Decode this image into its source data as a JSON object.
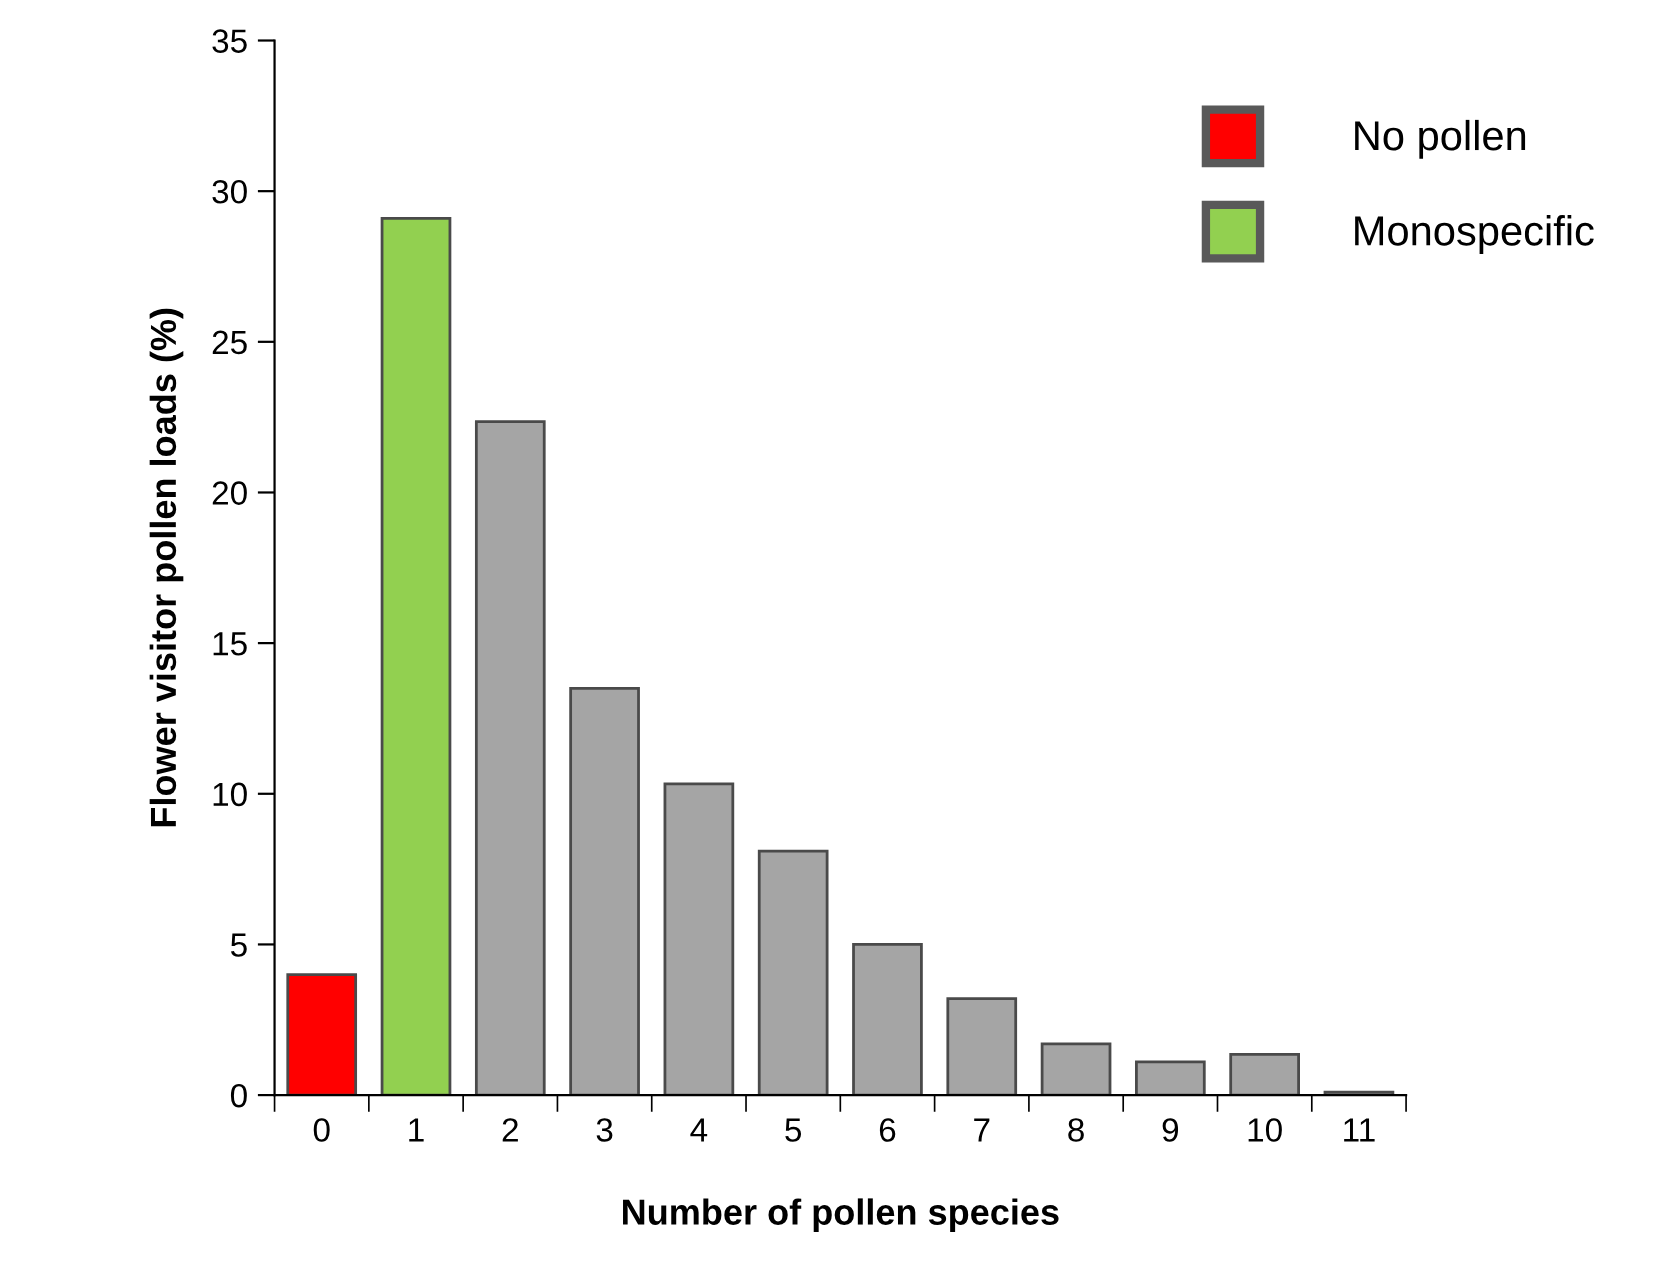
{
  "chart_data": {
    "type": "bar",
    "xlabel": "Number of pollen species",
    "ylabel": "Flower visitor pollen loads (%)",
    "categories": [
      "0",
      "1",
      "2",
      "3",
      "4",
      "5",
      "6",
      "7",
      "8",
      "9",
      "10",
      "11"
    ],
    "series": [
      {
        "name": "No pollen",
        "color": "#ff0000",
        "values": [
          4.0,
          null,
          null,
          null,
          null,
          null,
          null,
          null,
          null,
          null,
          null,
          null
        ]
      },
      {
        "name": "Monospecific",
        "color": "#92d050",
        "values": [
          null,
          29.1,
          null,
          null,
          null,
          null,
          null,
          null,
          null,
          null,
          null,
          null
        ]
      },
      {
        "color": "#a5a5a5",
        "values": [
          null,
          null,
          22.35,
          13.5,
          10.33,
          8.1,
          5.0,
          3.2,
          1.7,
          1.1,
          1.35,
          0.1
        ]
      }
    ],
    "ylim": [
      0,
      35
    ],
    "yticks": [
      0,
      5,
      10,
      15,
      20,
      25,
      30,
      35
    ],
    "grid": false,
    "legend": "top right"
  }
}
